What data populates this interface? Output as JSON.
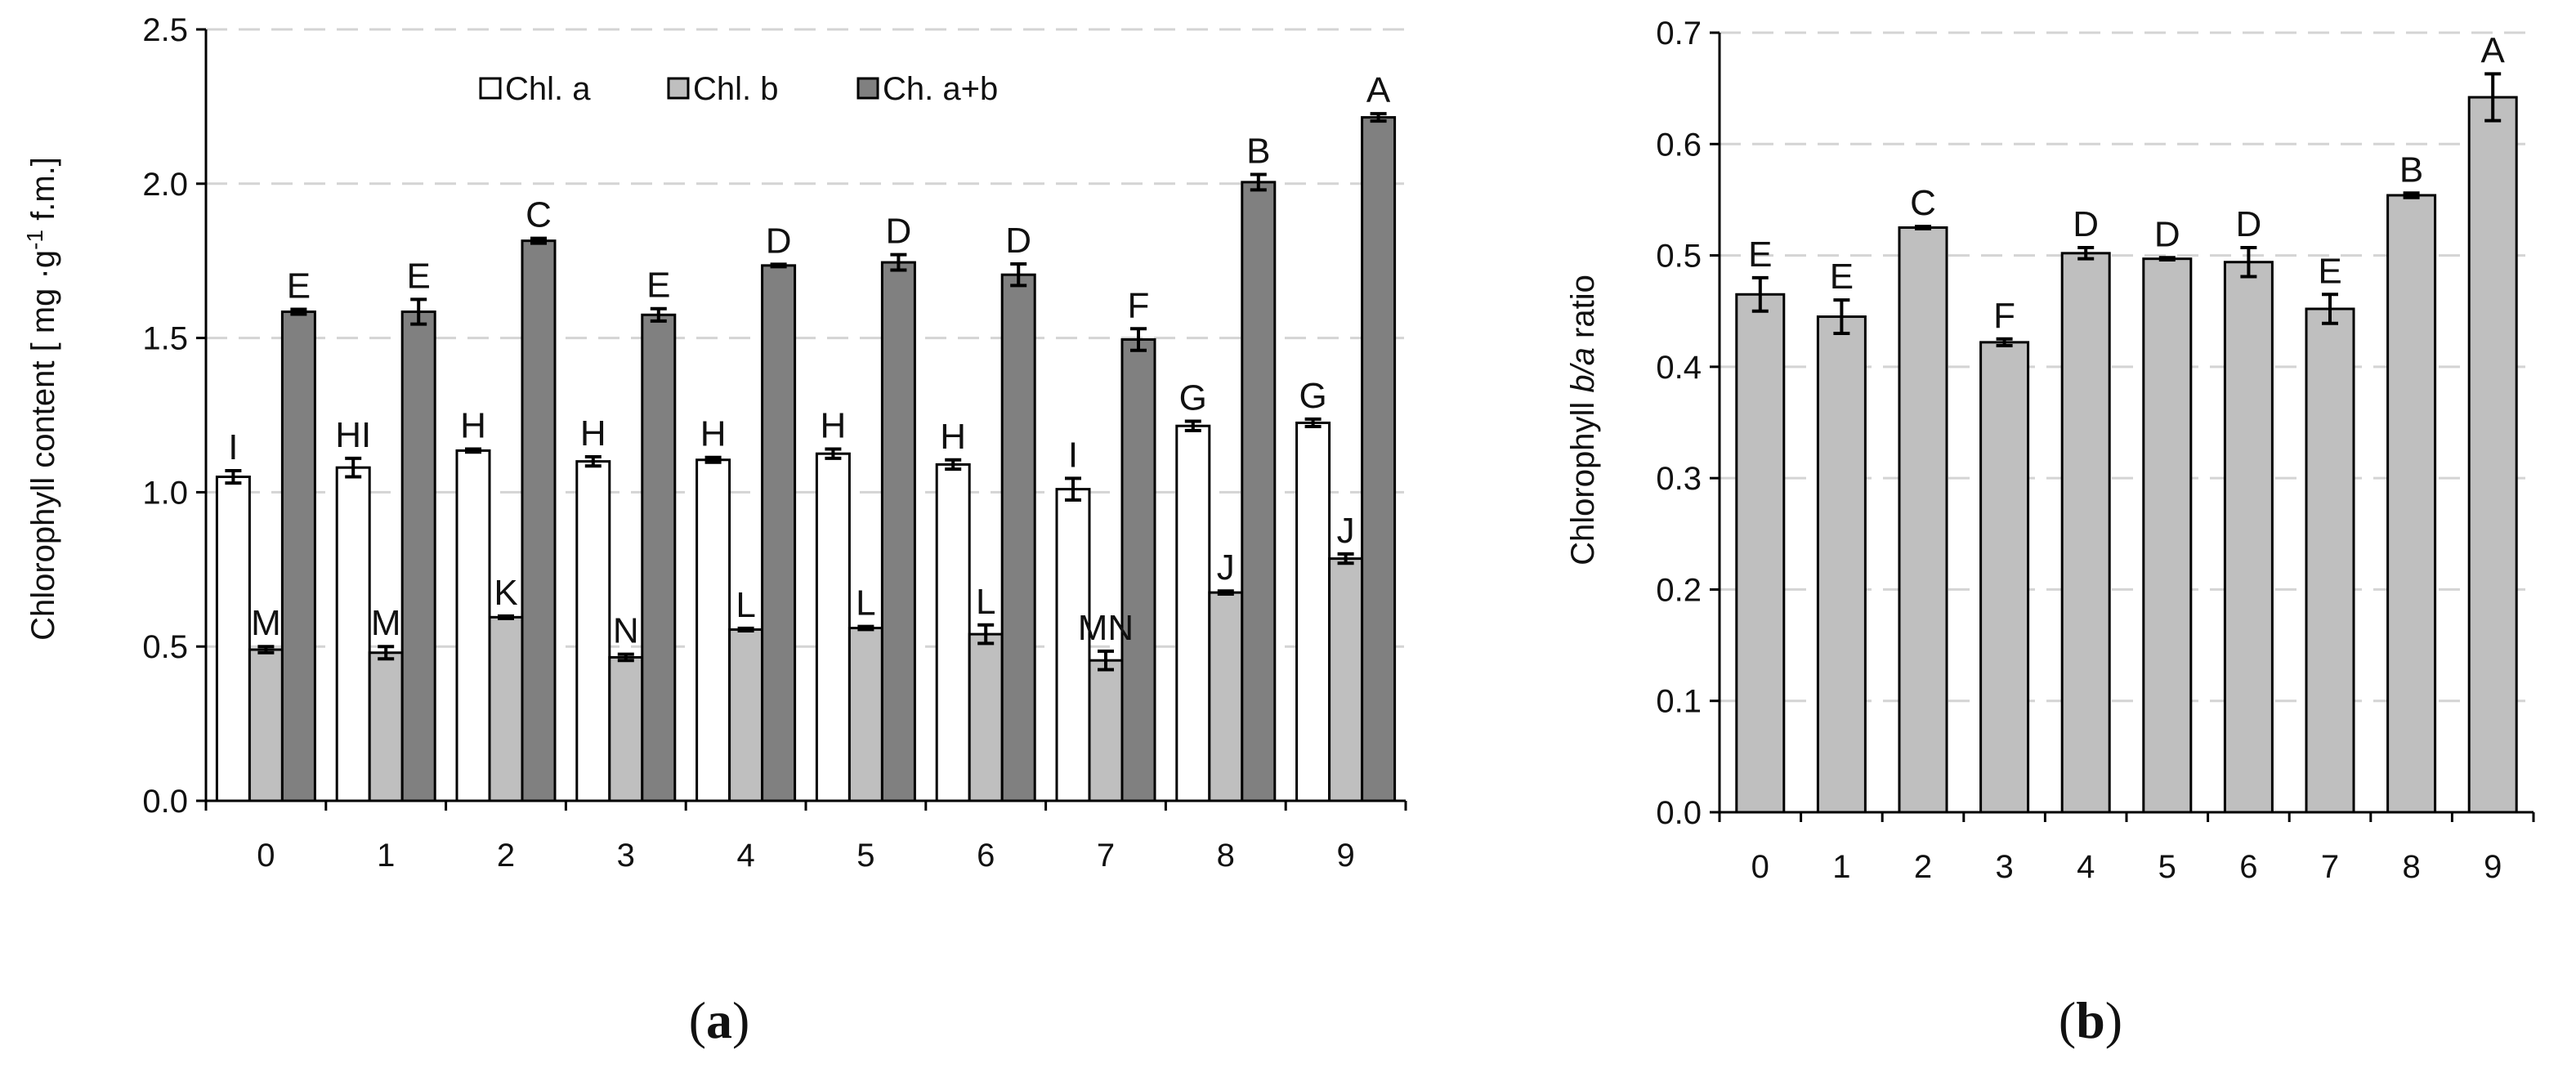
{
  "chart_data": [
    {
      "panel": "a",
      "panel_label": "a",
      "type": "bar",
      "ylabel_prefix": "Chlorophyll content [ mg ·g",
      "ylabel_sup": "-1",
      "ylabel_suffix": " f.m.]",
      "xlabel": "",
      "ylim": [
        0,
        2.5
      ],
      "yticks": [
        "0.0",
        "0.5",
        "1.0",
        "1.5",
        "2.0",
        "2.5"
      ],
      "categories": [
        "0",
        "1",
        "2",
        "3",
        "4",
        "5",
        "6",
        "7",
        "8",
        "9"
      ],
      "legend_position": "top-center",
      "series": [
        {
          "name": "Chl. a",
          "color": "#ffffff",
          "values": [
            1.05,
            1.08,
            1.135,
            1.1,
            1.105,
            1.125,
            1.09,
            1.01,
            1.215,
            1.225
          ],
          "errors": [
            0.02,
            0.03,
            0.005,
            0.015,
            0.008,
            0.015,
            0.015,
            0.035,
            0.015,
            0.012
          ],
          "letters": [
            "I",
            "HI",
            "H",
            "H",
            "H",
            "H",
            "H",
            "I",
            "G",
            "G"
          ]
        },
        {
          "name": "Chl. b",
          "color": "#bfbfbf",
          "values": [
            0.49,
            0.48,
            0.595,
            0.465,
            0.555,
            0.56,
            0.54,
            0.455,
            0.675,
            0.785
          ],
          "errors": [
            0.01,
            0.02,
            0.004,
            0.01,
            0.004,
            0.005,
            0.03,
            0.03,
            0.005,
            0.015
          ],
          "letters": [
            "M",
            "M",
            "K",
            "N",
            "L",
            "L",
            "L",
            "MN",
            "J",
            "J"
          ]
        },
        {
          "name": "Ch. a+b",
          "color": "#808080",
          "values": [
            1.585,
            1.585,
            1.815,
            1.575,
            1.735,
            1.745,
            1.705,
            1.495,
            2.005,
            2.215
          ],
          "errors": [
            0.008,
            0.04,
            0.008,
            0.02,
            0.004,
            0.025,
            0.035,
            0.035,
            0.025,
            0.012
          ],
          "letters": [
            "E",
            "E",
            "C",
            "E",
            "D",
            "D",
            "D",
            "F",
            "B",
            "A"
          ]
        }
      ]
    },
    {
      "panel": "b",
      "panel_label": "b",
      "type": "bar",
      "ylabel_prefix": "Chlorophyll ",
      "ylabel_italic": "b/a",
      "ylabel_suffix": " ratio",
      "xlabel": "",
      "ylim": [
        0,
        0.7
      ],
      "yticks": [
        "0.0",
        "0.1",
        "0.2",
        "0.3",
        "0.4",
        "0.5",
        "0.6",
        "0.7"
      ],
      "categories": [
        "0",
        "1",
        "2",
        "3",
        "4",
        "5",
        "6",
        "7",
        "8",
        "9"
      ],
      "series": [
        {
          "name": "b/a ratio",
          "color": "#bfbfbf",
          "values": [
            0.465,
            0.445,
            0.525,
            0.422,
            0.502,
            0.497,
            0.494,
            0.452,
            0.554,
            0.642
          ],
          "errors": [
            0.015,
            0.015,
            0.001,
            0.003,
            0.005,
            0.001,
            0.013,
            0.013,
            0.002,
            0.021
          ],
          "letters": [
            "E",
            "E",
            "C",
            "F",
            "D",
            "D",
            "D",
            "E",
            "B",
            "A"
          ]
        }
      ]
    }
  ]
}
